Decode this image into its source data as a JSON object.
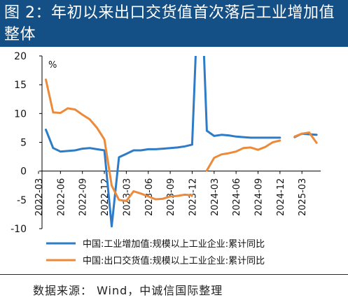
{
  "title": "图 2：年初以来出口交货值首次落后工业增加值整体",
  "source": "数据来源：  Wind，中诚信国际整理",
  "chart_data": {
    "type": "line",
    "ylabel": "%",
    "ylim": [
      -10,
      20
    ],
    "yticks": [
      "20",
      "15",
      "10",
      "5",
      "0",
      "-5",
      "-10"
    ],
    "ytick_values": [
      20,
      15,
      10,
      5,
      0,
      -5,
      -10
    ],
    "x": [
      "2022-03",
      "2022-04",
      "2022-05",
      "2022-06",
      "2022-07",
      "2022-08",
      "2022-09",
      "2022-10",
      "2022-11",
      "2022-12",
      "2023-01",
      "2023-02",
      "2023-03",
      "2023-04",
      "2023-05",
      "2023-06",
      "2023-07",
      "2023-08",
      "2023-09",
      "2023-10",
      "2023-11",
      "2023-12",
      "2024-01",
      "2024-02",
      "2024-03",
      "2024-04",
      "2024-05",
      "2024-06",
      "2024-07",
      "2024-08",
      "2024-09",
      "2024-10",
      "2024-11",
      "2024-12",
      "2025-01",
      "2025-02",
      "2025-03",
      "2025-04",
      "2025-05"
    ],
    "xtick_labels": [
      "2022-03",
      "2022-06",
      "2022-09",
      "2022-12",
      "2023-03",
      "2023-06",
      "2023-09",
      "2023-12",
      "2024-03",
      "2024-06",
      "2024-09",
      "2024-12",
      "2025-03"
    ],
    "series": [
      {
        "name": "中国:工业增加值:规模以上工业企业:累计同比",
        "color": "#2e7cc7",
        "values": [
          null,
          7.2,
          4.0,
          3.4,
          3.5,
          3.6,
          3.9,
          4.0,
          3.8,
          3.6,
          -9.6,
          2.4,
          3.0,
          3.6,
          3.6,
          3.8,
          3.8,
          3.9,
          4.0,
          4.1,
          4.3,
          4.6,
          null,
          7.0,
          6.1,
          6.3,
          6.2,
          6.0,
          5.9,
          5.8,
          5.8,
          5.8,
          5.8,
          5.8,
          null,
          5.9,
          6.5,
          6.4,
          6.3
        ]
      },
      {
        "name": "中国:出口交货值:规模以上工业企业:累计同比",
        "color": "#ed8a3a",
        "values": [
          null,
          15.9,
          10.2,
          10.1,
          10.9,
          10.7,
          9.8,
          9.0,
          7.5,
          5.5,
          -2.5,
          -5.0,
          -5.2,
          -3.5,
          -3.9,
          -4.4,
          -4.9,
          -4.8,
          -4.4,
          -4.3,
          -4.1,
          -4.2,
          null,
          0.1,
          2.3,
          2.9,
          3.1,
          3.4,
          4.0,
          4.1,
          3.7,
          4.2,
          5.0,
          5.3,
          null,
          6.0,
          6.5,
          6.7,
          4.9
        ]
      }
    ]
  }
}
